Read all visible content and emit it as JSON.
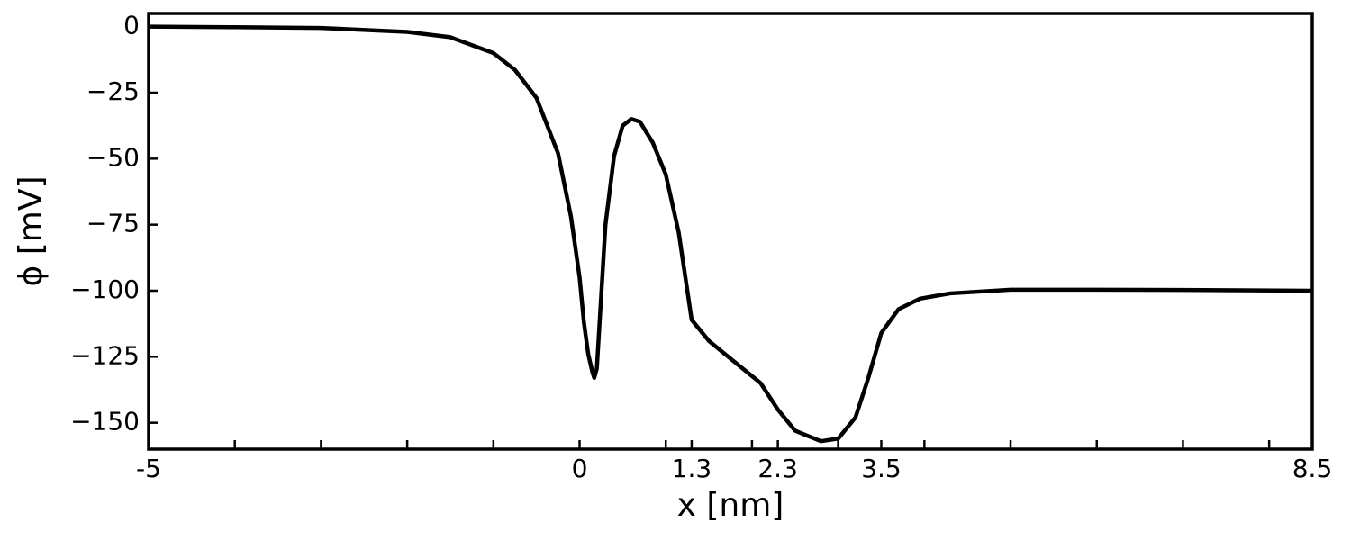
{
  "chart_data": {
    "type": "line",
    "xlabel": "x [nm]",
    "ylabel": "ϕ [mV]",
    "x": [
      -5,
      -4,
      -3,
      -2,
      -1.5,
      -1,
      -0.75,
      -0.5,
      -0.25,
      -0.1,
      0,
      0.05,
      0.1,
      0.15,
      0.17,
      0.2,
      0.3,
      0.4,
      0.5,
      0.6,
      0.7,
      0.85,
      1.0,
      1.15,
      1.3,
      1.5,
      1.8,
      2.1,
      2.3,
      2.5,
      2.8,
      3.0,
      3.2,
      3.35,
      3.5,
      3.7,
      3.95,
      4.3,
      5,
      6,
      7,
      8.5
    ],
    "series": [
      {
        "color": "#000000",
        "values": [
          0,
          -0.2,
          -0.5,
          -2,
          -4,
          -10,
          -16.4,
          -27,
          -48,
          -72,
          -95,
          -112,
          -124,
          -131,
          -133,
          -129.5,
          -75,
          -49,
          -37.5,
          -35,
          -36,
          -44,
          -56,
          -78,
          -111,
          -119,
          -127,
          -135,
          -145,
          -153,
          -157,
          -156,
          -148,
          -133,
          -116,
          -107,
          -103,
          -101,
          -99.6,
          -99.6,
          -99.7,
          -100
        ]
      }
    ],
    "xlim": [
      -5,
      8.5
    ],
    "ylim": [
      -160,
      5
    ],
    "xticks": [
      -5,
      0,
      1.3,
      2.3,
      3.5,
      8.5
    ],
    "xminorticks": [
      -4,
      -3,
      -2,
      -1,
      1,
      2,
      3,
      4,
      5,
      6,
      7,
      8
    ],
    "yticks": [
      {
        "value": -150,
        "label": "−150"
      },
      {
        "value": -125,
        "label": "−125"
      },
      {
        "value": -100,
        "label": "−100"
      },
      {
        "value": -75,
        "label": "−75"
      },
      {
        "value": -50,
        "label": "−50"
      },
      {
        "value": -25,
        "label": "−25"
      },
      0
    ],
    "grid": false
  }
}
